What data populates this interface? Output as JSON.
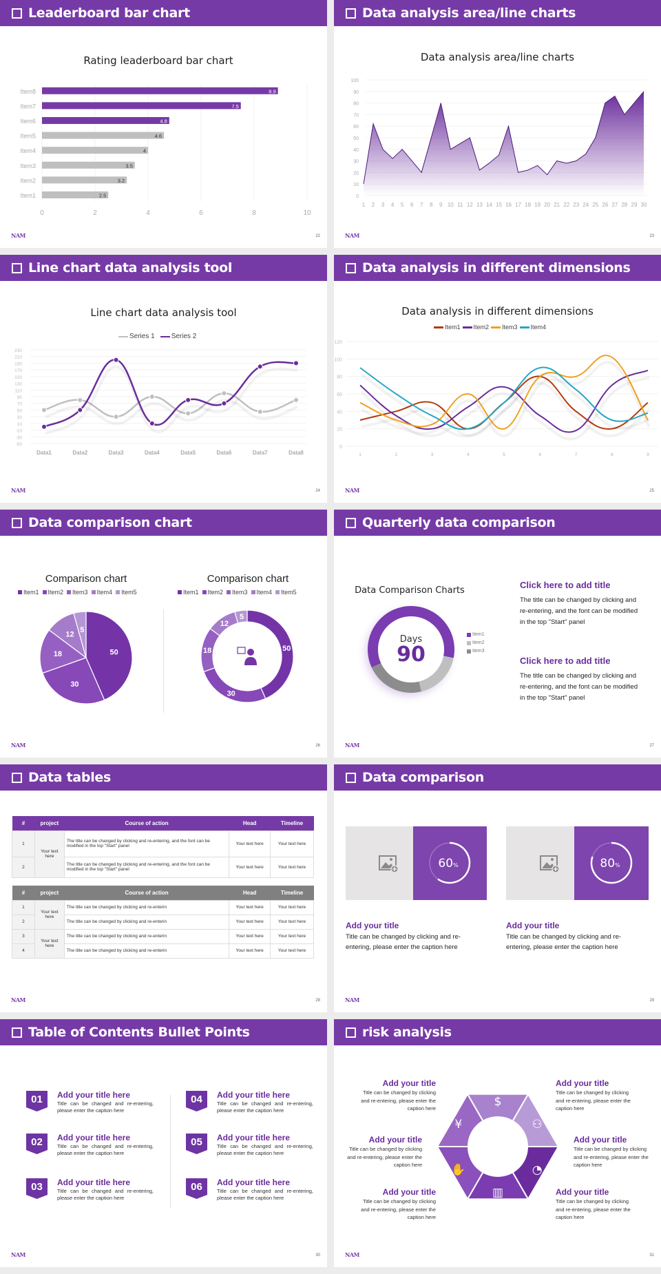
{
  "theme": {
    "accent": "#763aa7",
    "gray": "#bfbfbf",
    "dark_gray": "#8c8c8c",
    "background": "#ececec"
  },
  "logo_text": "NAM",
  "slides": [
    {
      "title": "Leaderboard bar chart",
      "page": "22"
    },
    {
      "title": "Data analysis area/line charts",
      "page": "23"
    },
    {
      "title": "Line chart data analysis tool",
      "page": "24"
    },
    {
      "title": "Data analysis in different dimensions",
      "page": "25"
    },
    {
      "title": "Data comparison chart",
      "page": "26"
    },
    {
      "title": "Quarterly data comparison",
      "page": "27",
      "blocks": [
        {
          "title": "Click here to add title",
          "text": "The title can be changed by clicking and re-entering, and the font can be modified in the top \"Start\" panel"
        },
        {
          "title": "Click here to add title",
          "text": "The title can be changed by clicking and re-entering, and the font can be modified in the top \"Start\" panel"
        }
      ]
    },
    {
      "title": "Data tables",
      "page": "28",
      "table1": {
        "headers": [
          "#",
          "project",
          "Course of action",
          "Head",
          "Timeline"
        ],
        "project": "Your text here",
        "rows": [
          {
            "n": "1",
            "action": " The title can be changed by clicking and re-entering, and the font can be modified in the top \"Start\" panel",
            "head": "Your text here",
            "timeline": "Your text here"
          },
          {
            "n": "2",
            "action": "The title can be changed by clicking and re-entering, and the font can be modified in the top \"Start\" panel",
            "head": "Your text here",
            "timeline": "Your text here"
          }
        ]
      },
      "table2": {
        "headers": [
          "#",
          "project",
          "Course of action",
          "Head",
          "Timeline"
        ],
        "projects": [
          "Your text here",
          "Your text here"
        ],
        "rows": [
          {
            "n": "1",
            "action": "The title can be changed by clicking and re-enterin",
            "head": "Your text here",
            "timeline": "Your text here"
          },
          {
            "n": "2",
            "action": "The title can be changed by clicking and re-enterin",
            "head": "Your text here",
            "timeline": "Your text here"
          },
          {
            "n": "3",
            "action": "The title can be changed by clicking and re-enterin",
            "head": "Your text here",
            "timeline": "Your text here"
          },
          {
            "n": "4",
            "action": "The title can be changed by clicking and re-enterin",
            "head": "Your text here",
            "timeline": "Your text here"
          }
        ]
      }
    },
    {
      "title": "Data comparison",
      "page": "29",
      "cards": [
        {
          "percent": 60,
          "value_label": "60",
          "unit": "%",
          "title": "Add your title",
          "text": "Title can be changed by clicking and re-entering, please enter the caption here"
        },
        {
          "percent": 80,
          "value_label": "80",
          "unit": "%",
          "title": "Add your title",
          "text": "Title can be changed by clicking and re-entering, please enter the caption here"
        }
      ]
    },
    {
      "title": "Table of Contents Bullet Points",
      "page": "30",
      "items": [
        {
          "num": "01",
          "title": "Add your title here",
          "text": "Title can be changed and re-entering, please enter the caption here"
        },
        {
          "num": "02",
          "title": "Add your title here",
          "text": "Title can be changed and re-entering, please enter the caption here"
        },
        {
          "num": "03",
          "title": "Add your title here",
          "text": "Title can be changed and re-entering, please enter the caption here"
        },
        {
          "num": "04",
          "title": "Add your title here",
          "text": "Title can be changed and re-entering, please enter the caption here"
        },
        {
          "num": "05",
          "title": "Add your title here",
          "text": "Title can be changed and re-entering, please enter the caption here"
        },
        {
          "num": "06",
          "title": "Add your title here",
          "text": "Title can be changed and re-entering, please enter the caption here"
        }
      ]
    },
    {
      "title": "risk analysis",
      "page": "31",
      "items": [
        {
          "title": "Add your title",
          "text": "Title can be changed by clicking and re-entering, please enter the caption here",
          "icon": "money-bag-yen-icon"
        },
        {
          "title": "Add your title",
          "text": "Title can be changed by clicking and re-entering, please enter the caption here",
          "icon": "coins-dollar-icon"
        },
        {
          "title": "Add your title",
          "text": "Title can be changed by clicking and re-entering, please enter the caption here",
          "icon": "hand-yen-icon"
        },
        {
          "title": "Add your title",
          "text": "Title can be changed by clicking and re-entering, please enter the caption here",
          "icon": "users-icon"
        },
        {
          "title": "Add your title",
          "text": "Title can be changed by clicking and re-entering, please enter the caption here",
          "icon": "buildings-icon"
        },
        {
          "title": "Add your title",
          "text": "Title can be changed by clicking and re-entering, please enter the caption here",
          "icon": "pie-chart-icon"
        }
      ]
    }
  ],
  "chart_data": [
    {
      "type": "bar",
      "orientation": "horizontal",
      "title": "Rating leaderboard bar chart",
      "categories": [
        "Item1",
        "Item2",
        "Item3",
        "Item4",
        "Item5",
        "Item6",
        "Item7",
        "Item8"
      ],
      "values": [
        2.5,
        3.2,
        3.5,
        4,
        4.6,
        4.8,
        7.5,
        8.9
      ],
      "highlight_colors": [
        "#bfbfbf",
        "#bfbfbf",
        "#bfbfbf",
        "#bfbfbf",
        "#bfbfbf",
        "#763aa7",
        "#763aa7",
        "#763aa7"
      ],
      "xlim": [
        0,
        10
      ],
      "xticks": [
        "0",
        "2",
        "4",
        "6",
        "8",
        "10"
      ],
      "grid": true,
      "data_labels": true
    },
    {
      "type": "area",
      "title": "Data analysis area/line charts",
      "x": [
        1,
        2,
        3,
        4,
        5,
        6,
        7,
        8,
        9,
        10,
        11,
        12,
        13,
        14,
        15,
        16,
        17,
        18,
        19,
        20,
        21,
        22,
        23,
        24,
        25,
        26,
        27,
        28,
        29,
        30
      ],
      "values": [
        10,
        62,
        40,
        32,
        40,
        30,
        20,
        50,
        80,
        40,
        45,
        50,
        22,
        28,
        35,
        60,
        20,
        22,
        26,
        18,
        30,
        28,
        30,
        36,
        50,
        80,
        86,
        70,
        80,
        90
      ],
      "ylim": [
        0,
        100
      ],
      "yticks": [
        "0",
        "10",
        "20",
        "30",
        "40",
        "50",
        "60",
        "70",
        "80",
        "90",
        "100"
      ],
      "grid": true
    },
    {
      "type": "line",
      "smooth": true,
      "title": "Line chart data analysis tool",
      "categories": [
        "Data1",
        "Data2",
        "Data3",
        "Data4",
        "Data5",
        "Data6",
        "Data7",
        "Data8"
      ],
      "series": [
        {
          "name": "Series 1",
          "color": "#bfbfbf",
          "values": [
            50,
            80,
            30,
            90,
            40,
            100,
            45,
            80
          ]
        },
        {
          "name": "Series 2",
          "color": "#6a2c9c",
          "values": [
            0,
            50,
            200,
            10,
            80,
            70,
            180,
            190
          ]
        }
      ],
      "ylim": [
        -50,
        230
      ],
      "yticks": [
        "-50",
        "-30",
        "-10",
        "10",
        "30",
        "50",
        "70",
        "90",
        "110",
        "130",
        "150",
        "170",
        "190",
        "210",
        "230"
      ],
      "legend": "top",
      "grid": true
    },
    {
      "type": "line",
      "smooth": true,
      "title": "Data analysis in different dimensions",
      "categories": [
        "1",
        "2",
        "3",
        "4",
        "5",
        "6",
        "7",
        "8",
        "9"
      ],
      "series": [
        {
          "name": "Item1",
          "color": "#b23b0c",
          "values": [
            30,
            40,
            50,
            20,
            50,
            80,
            40,
            20,
            50
          ]
        },
        {
          "name": "Item2",
          "color": "#6a2c9c",
          "values": [
            70,
            35,
            20,
            45,
            68,
            35,
            18,
            70,
            87
          ]
        },
        {
          "name": "Item3",
          "color": "#f0a020",
          "values": [
            50,
            30,
            25,
            60,
            20,
            80,
            80,
            102,
            30
          ]
        },
        {
          "name": "Item4",
          "color": "#25a6c4",
          "values": [
            90,
            60,
            35,
            20,
            50,
            90,
            65,
            30,
            38
          ]
        }
      ],
      "ylim": [
        0,
        120
      ],
      "yticks": [
        "0",
        "20",
        "40",
        "60",
        "80",
        "100",
        "120"
      ],
      "legend": "top",
      "grid": true
    },
    {
      "type": "pie",
      "title": "Comparison chart",
      "categories": [
        "Item1",
        "Item2",
        "Item3",
        "Item4",
        "Item5"
      ],
      "values": [
        50,
        30,
        18,
        12,
        5
      ],
      "colors": [
        "#7434a8",
        "#8748b8",
        "#9660c2",
        "#a57cca",
        "#b596d4"
      ],
      "legend": "top",
      "data_labels": true
    },
    {
      "type": "pie",
      "donut": true,
      "title": "Comparison chart",
      "categories": [
        "Item1",
        "Item2",
        "Item3",
        "Item4",
        "Item5"
      ],
      "values": [
        50,
        30,
        18,
        12,
        5
      ],
      "colors": [
        "#7434a8",
        "#8748b8",
        "#9660c2",
        "#a57cca",
        "#b596d4"
      ],
      "legend": "top",
      "data_labels": true,
      "center_icon": "customer-service-icon"
    },
    {
      "type": "pie",
      "donut": true,
      "title": "Data Comparison Charts",
      "categories": [
        "Item1",
        "Item2",
        "Item3"
      ],
      "values": [
        60,
        18,
        22
      ],
      "colors": [
        "#7a3cb0",
        "#bfbfbf",
        "#8c8c8c"
      ],
      "legend": "right",
      "center_label": "Days",
      "center_value": "90"
    }
  ]
}
